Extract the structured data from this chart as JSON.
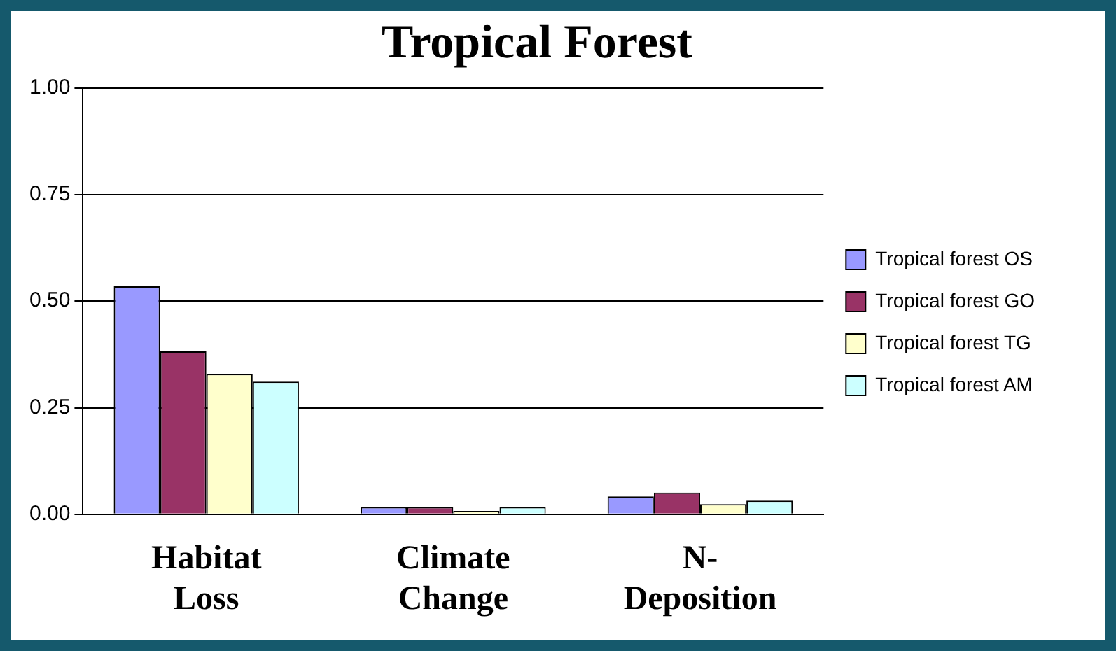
{
  "chart_data": {
    "type": "bar",
    "title": "Tropical Forest",
    "categories": [
      "Habitat Loss",
      "Climate Change",
      "N-Deposition"
    ],
    "series": [
      {
        "name": "Tropical forest OS",
        "color": "#9999ff",
        "values": [
          0.535,
          0.017,
          0.042
        ]
      },
      {
        "name": "Tropical forest GO",
        "color": "#993366",
        "values": [
          0.382,
          0.017,
          0.051
        ]
      },
      {
        "name": "Tropical forest TG",
        "color": "#ffffcc",
        "values": [
          0.329,
          0.008,
          0.024
        ]
      },
      {
        "name": "Tropical forest AM",
        "color": "#ccffff",
        "values": [
          0.311,
          0.017,
          0.032
        ]
      }
    ],
    "ylim": [
      0,
      1
    ],
    "yticks": [
      {
        "value": 0,
        "label": "0.00"
      },
      {
        "value": 0.25,
        "label": "0.25"
      },
      {
        "value": 0.5,
        "label": "0.50"
      },
      {
        "value": 0.75,
        "label": "0.75"
      },
      {
        "value": 1,
        "label": "1.00"
      }
    ],
    "grid": "y",
    "legend": "right"
  }
}
